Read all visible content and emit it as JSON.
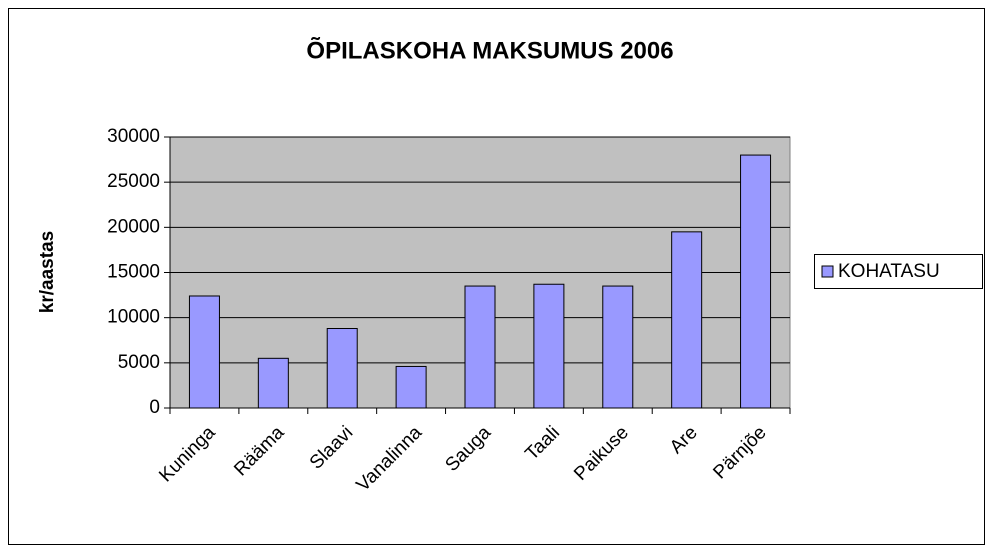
{
  "chart_data": {
    "type": "bar",
    "title": "ÕPILASKOHA MAKSUMUS 2006",
    "y_label": "kr/aastas",
    "categories": [
      "Kuninga",
      "Rääma",
      "Slaavi",
      "Vanalinna",
      "Sauga",
      "Taali",
      "Paikuse",
      "Are",
      "Pärnjõe"
    ],
    "series": [
      {
        "name": "KOHATASU",
        "color": "#9999ff",
        "values": [
          12400,
          5500,
          8800,
          4600,
          13500,
          13700,
          13500,
          19500,
          28000
        ]
      }
    ],
    "ylim": [
      0,
      30000
    ],
    "yticks": [
      0,
      5000,
      10000,
      15000,
      20000,
      25000,
      30000
    ],
    "grid": true,
    "legend": "right"
  }
}
